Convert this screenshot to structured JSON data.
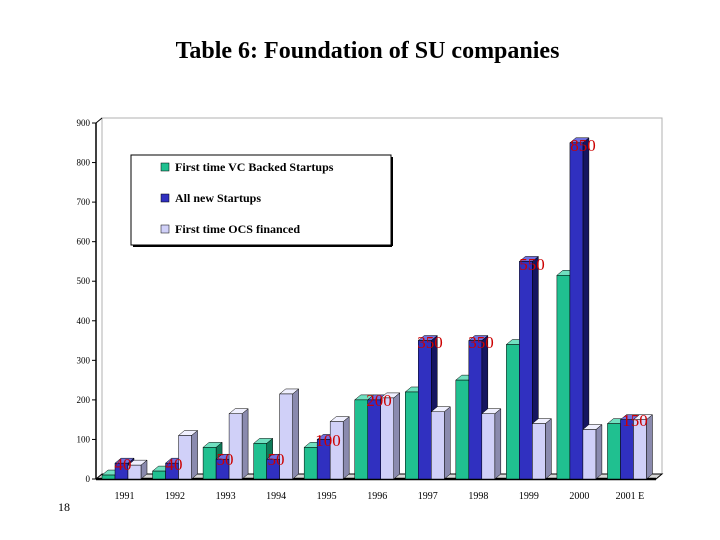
{
  "slide": {
    "title": "Table 6: Foundation of SU companies",
    "page_number": "18"
  },
  "colors": {
    "vc": "#20c090",
    "new": "#3030c0",
    "ocs": "#d0d0f8",
    "label": "#cc0000"
  },
  "chart_data": {
    "type": "bar",
    "categories": [
      "1991",
      "1992",
      "1993",
      "1994",
      "1995",
      "1996",
      "1997",
      "1998",
      "1999",
      "2000",
      "2001 E"
    ],
    "series": [
      {
        "name": "First time VC Backed Startups",
        "values": [
          10,
          20,
          80,
          90,
          80,
          200,
          220,
          250,
          340,
          515,
          140
        ]
      },
      {
        "name": "All new Startups",
        "values": [
          40,
          40,
          50,
          50,
          100,
          200,
          350,
          350,
          550,
          850,
          150
        ]
      },
      {
        "name": "First time OCS financed",
        "values": [
          35,
          110,
          165,
          215,
          145,
          205,
          170,
          165,
          140,
          125,
          150
        ]
      }
    ],
    "data_labels": [
      "40",
      "40",
      "50",
      "50",
      "100",
      "200",
      "350",
      "350",
      "550",
      "850",
      "150"
    ],
    "y_ticks": [
      "0",
      "100",
      "200",
      "300",
      "400",
      "500",
      "600",
      "700",
      "800",
      "900"
    ],
    "ylim": [
      0,
      900
    ],
    "grid": false,
    "legend_position": "top-left"
  }
}
